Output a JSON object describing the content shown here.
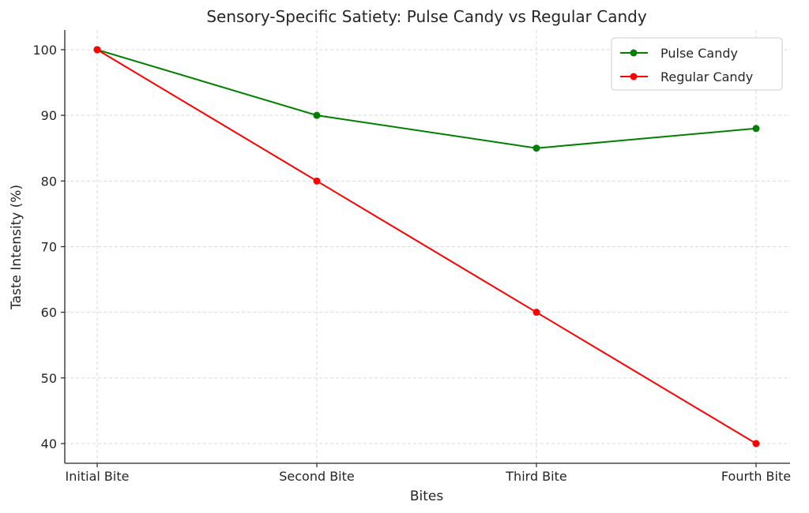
{
  "chart_data": {
    "type": "line",
    "title": "Sensory-Specific Satiety: Pulse Candy vs Regular Candy",
    "xlabel": "Bites",
    "ylabel": "Taste Intensity (%)",
    "categories": [
      "Initial Bite",
      "Second Bite",
      "Third Bite",
      "Fourth Bite"
    ],
    "yticks": [
      40,
      50,
      60,
      70,
      80,
      90,
      100
    ],
    "ylim": [
      37,
      103
    ],
    "grid": true,
    "legend_position": "top-right",
    "series": [
      {
        "name": "Pulse Candy",
        "color": "#008000",
        "values": [
          100,
          90,
          85,
          88
        ]
      },
      {
        "name": "Regular Candy",
        "color": "#ff0000",
        "values": [
          100,
          80,
          60,
          40
        ]
      }
    ]
  }
}
